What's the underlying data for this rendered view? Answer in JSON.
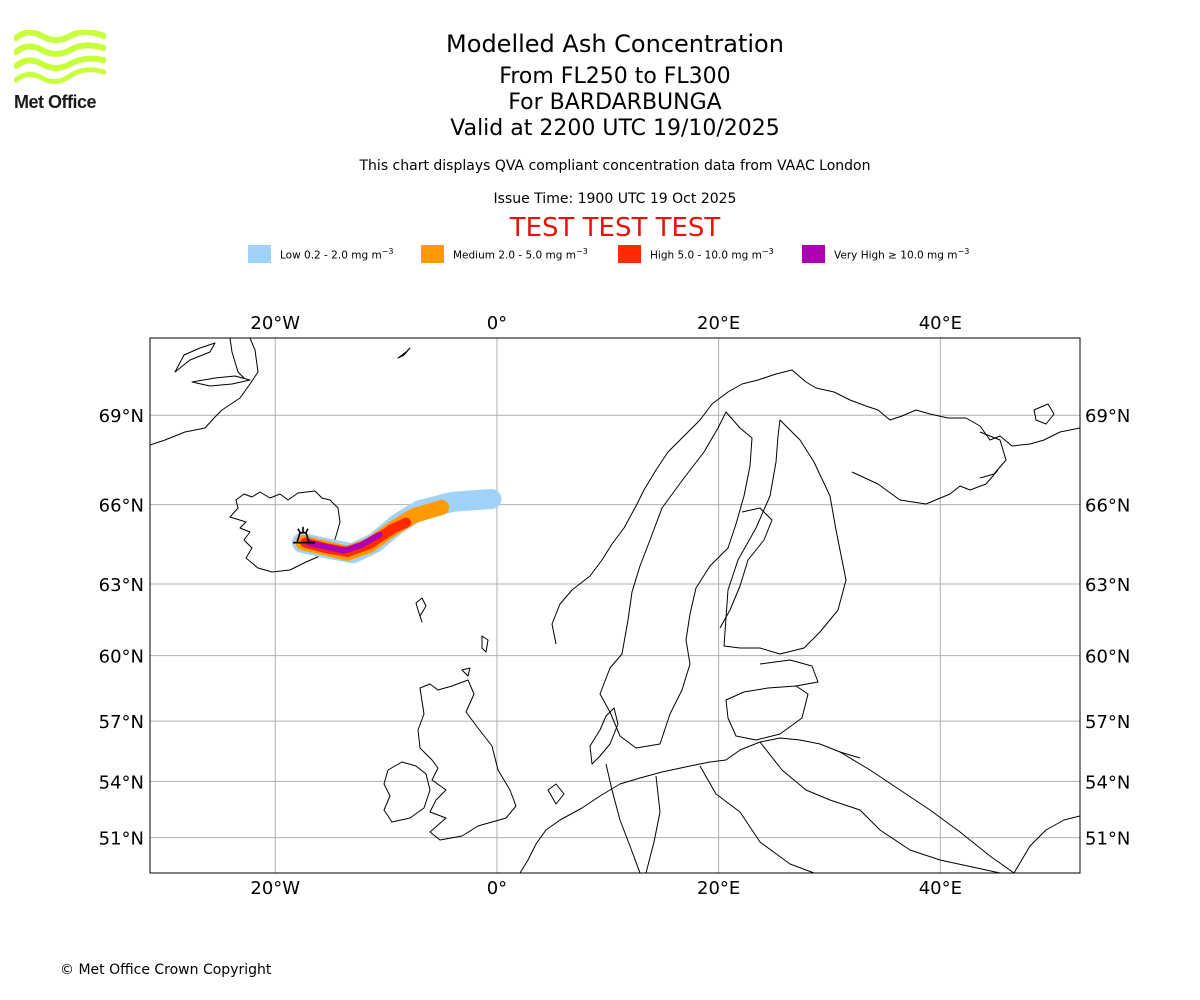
{
  "logo": {
    "text": "Met Office"
  },
  "header": {
    "title": "Modelled Ash Concentration",
    "level_range": "From FL250 to FL300",
    "volcano": "For BARDARBUNGA",
    "valid_time": "Valid at 2200 UTC 19/10/2025",
    "description": "This chart displays QVA compliant concentration data from VAAC London",
    "issue_time": "Issue Time: 1900 UTC 19 Oct 2025",
    "test_banner": "TEST TEST TEST"
  },
  "legend": [
    {
      "label": "Low 0.2 - 2.0 mg m",
      "unit_exp": "−3",
      "color": "#a0d2fa"
    },
    {
      "label": "Medium 2.0 - 5.0 mg m",
      "unit_exp": "−3",
      "color": "#ff9a00"
    },
    {
      "label": "High 5.0 - 10.0 mg m",
      "unit_exp": "−3",
      "color": "#ff2a00"
    },
    {
      "label": "Very High  ≥  10.0 mg m",
      "unit_exp": "−3",
      "color": "#ad00b3"
    }
  ],
  "map": {
    "lon_range": [
      -31.3,
      52.6
    ],
    "lat_range": [
      49.0,
      71.3
    ],
    "lon_ticks": [
      {
        "lon": -20,
        "label": "20°W"
      },
      {
        "lon": 0,
        "label": "0°"
      },
      {
        "lon": 20,
        "label": "20°E"
      },
      {
        "lon": 40,
        "label": "40°E"
      }
    ],
    "lat_ticks": [
      {
        "lat": 69,
        "label": "69°N"
      },
      {
        "lat": 66,
        "label": "66°N"
      },
      {
        "lat": 63,
        "label": "63°N"
      },
      {
        "lat": 60,
        "label": "60°N"
      },
      {
        "lat": 57,
        "label": "57°N"
      },
      {
        "lat": 54,
        "label": "54°N"
      },
      {
        "lat": 51,
        "label": "51°N"
      }
    ],
    "volcano_position": {
      "lon": -17.5,
      "lat": 64.6
    },
    "plume": {
      "low": {
        "color": "#a0d2fa",
        "path": [
          [
            -17.6,
            64.6
          ],
          [
            -15.5,
            64.4
          ],
          [
            -13,
            64.2
          ],
          [
            -11,
            64.6
          ],
          [
            -9,
            65.3
          ],
          [
            -7,
            65.8
          ],
          [
            -4,
            66.1
          ],
          [
            -0.5,
            66.2
          ]
        ],
        "width": 20
      },
      "medium": {
        "color": "#ff9a00",
        "path": [
          [
            -17.5,
            64.6
          ],
          [
            -15.5,
            64.4
          ],
          [
            -13.5,
            64.2
          ],
          [
            -11.5,
            64.5
          ],
          [
            -9.5,
            65.1
          ],
          [
            -7.5,
            65.6
          ],
          [
            -5,
            65.9
          ]
        ],
        "width": 15
      },
      "high": {
        "color": "#ff2a00",
        "path": [
          [
            -17.3,
            64.6
          ],
          [
            -15.5,
            64.4
          ],
          [
            -13.5,
            64.25
          ],
          [
            -11.5,
            64.55
          ],
          [
            -9.5,
            65.1
          ],
          [
            -8.2,
            65.35
          ]
        ],
        "width": 10
      },
      "very_high": {
        "color": "#ad00b3",
        "path": [
          [
            -17.0,
            64.6
          ],
          [
            -15.5,
            64.45
          ],
          [
            -13.8,
            64.3
          ],
          [
            -12.3,
            64.5
          ],
          [
            -10.6,
            64.9
          ]
        ],
        "width": 6
      }
    }
  },
  "footer": {
    "copyright": "© Met Office Crown Copyright"
  }
}
